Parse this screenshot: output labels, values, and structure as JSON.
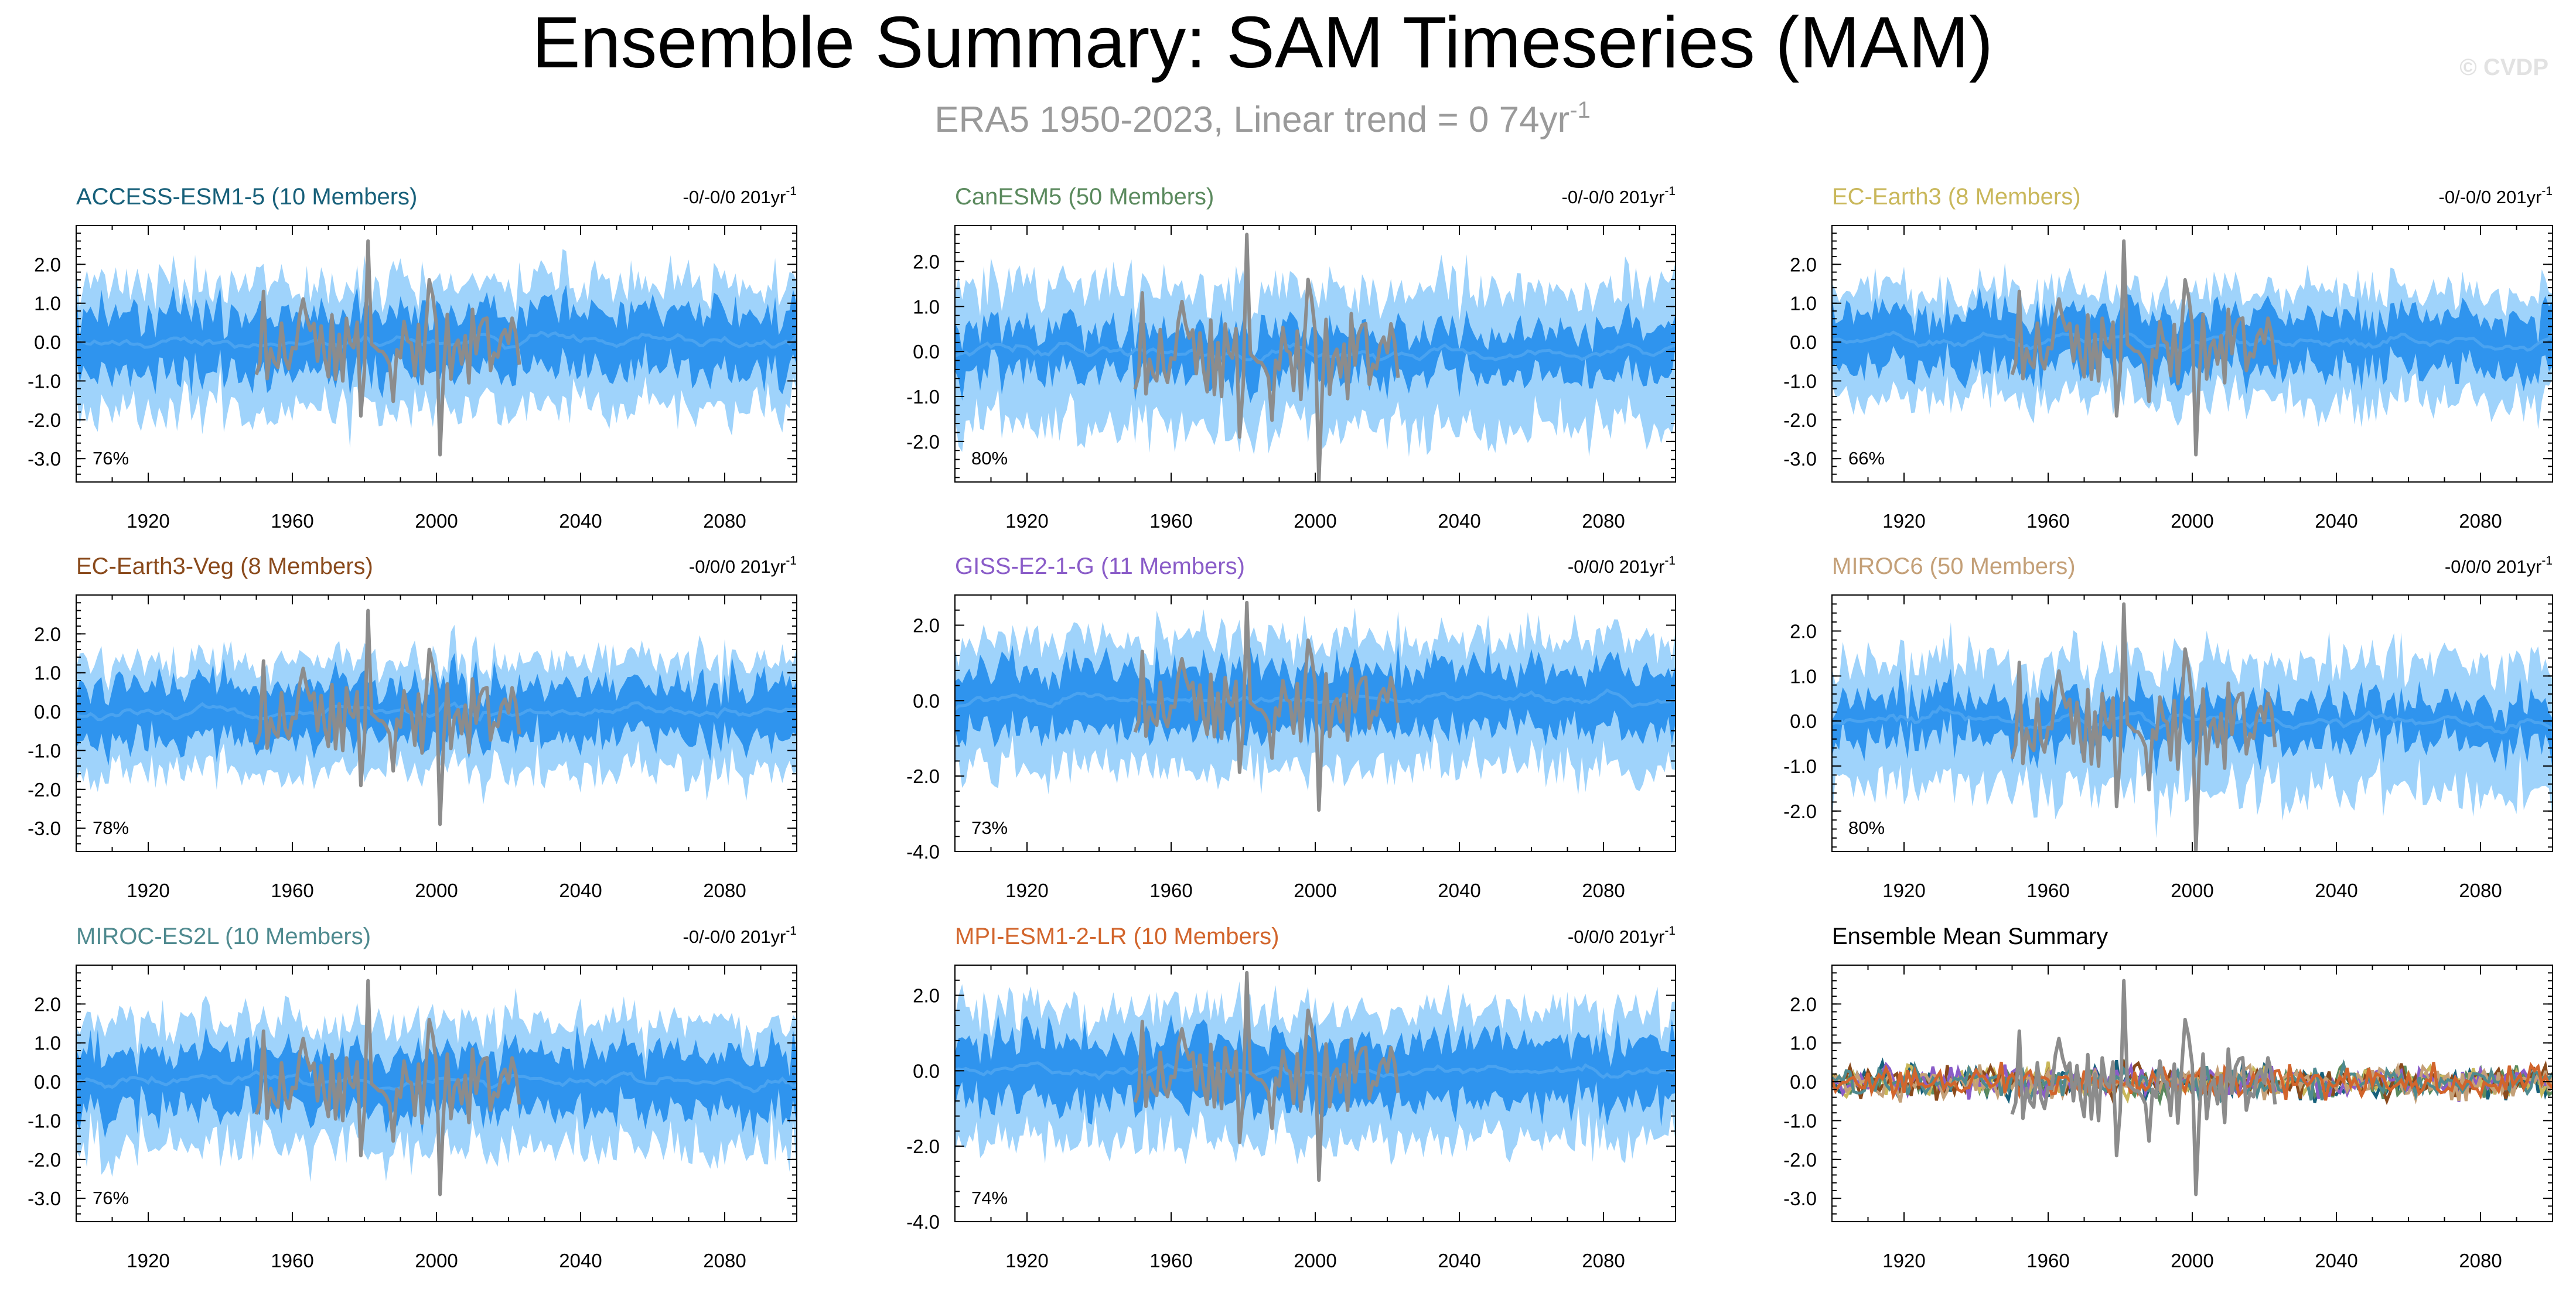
{
  "header": {
    "title": "Ensemble Summary: SAM Timeseries (MAM)",
    "subtitle_main": "ERA5 1950-2023, Linear trend = 0 74yr",
    "subtitle_sup": "-1",
    "watermark": "© CVDP"
  },
  "colors": {
    "outer_band": "#9fd3fb",
    "inner_band": "#2f94ee",
    "ensemble_mean": "#4aa3f0",
    "observations": "#8c8c8c",
    "axis": "#000000"
  },
  "chart_data": [
    {
      "type": "area",
      "title": "ACCESS-ESM1-5 (10 Members)",
      "title_color": "#17607a",
      "trend_text": "-0/-0/0 201yr",
      "trend_sup": "-1",
      "percent_label": "76%",
      "x_range": [
        1900,
        2100
      ],
      "x_ticks": [
        "1920",
        "1960",
        "2000",
        "2040",
        "2080"
      ],
      "ylim": [
        -3.6,
        3.0
      ],
      "y_ticks": [
        "2.0",
        "1.0",
        "0.0",
        "-1.0",
        "-2.0",
        "-3.0"
      ],
      "outer_half_width": 1.5,
      "inner_half_width": 0.75,
      "series": [
        {
          "role": "ensemble-band",
          "x_start": 1900,
          "x_end": 2100
        },
        {
          "role": "observations",
          "x_start": 1950,
          "x_end": 2023
        }
      ]
    },
    {
      "type": "area",
      "title": "CanESM5 (50 Members)",
      "title_color": "#5b8a5e",
      "trend_text": "-0/-0/0 201yr",
      "trend_sup": "-1",
      "percent_label": "80%",
      "x_range": [
        1900,
        2100
      ],
      "x_ticks": [
        "1920",
        "1960",
        "2000",
        "2040",
        "2080"
      ],
      "ylim": [
        -2.9,
        2.8
      ],
      "y_ticks": [
        "2.0",
        "1.0",
        "0.0",
        "-1.0",
        "-2.0"
      ],
      "outer_half_width": 1.4,
      "inner_half_width": 0.5,
      "series": [
        {
          "role": "ensemble-band",
          "x_start": 1900,
          "x_end": 2100
        },
        {
          "role": "observations",
          "x_start": 1950,
          "x_end": 2023
        }
      ]
    },
    {
      "type": "area",
      "title": "EC-Earth3 (8 Members)",
      "title_color": "#c9b75a",
      "trend_text": "-0/-0/0 201yr",
      "trend_sup": "-1",
      "percent_label": "66%",
      "x_range": [
        1900,
        2100
      ],
      "x_ticks": [
        "1920",
        "1960",
        "2000",
        "2040",
        "2080"
      ],
      "ylim": [
        -3.6,
        3.0
      ],
      "y_ticks": [
        "2.0",
        "1.0",
        "0.0",
        "-1.0",
        "-2.0",
        "-3.0"
      ],
      "outer_half_width": 1.3,
      "inner_half_width": 0.7,
      "series": [
        {
          "role": "ensemble-band",
          "x_start": 1900,
          "x_end": 2100
        },
        {
          "role": "observations",
          "x_start": 1950,
          "x_end": 2023
        }
      ]
    },
    {
      "type": "area",
      "title": "EC-Earth3-Veg (8 Members)",
      "title_color": "#8a4a1c",
      "trend_text": "-0/0/0 201yr",
      "trend_sup": "-1",
      "percent_label": "78%",
      "x_range": [
        1900,
        2100
      ],
      "x_ticks": [
        "1920",
        "1960",
        "2000",
        "2040",
        "2080"
      ],
      "ylim": [
        -3.6,
        3.0
      ],
      "y_ticks": [
        "2.0",
        "1.0",
        "0.0",
        "-1.0",
        "-2.0",
        "-3.0"
      ],
      "outer_half_width": 1.3,
      "inner_half_width": 0.7,
      "series": [
        {
          "role": "ensemble-band",
          "x_start": 1900,
          "x_end": 2100
        },
        {
          "role": "observations",
          "x_start": 1950,
          "x_end": 2023
        }
      ]
    },
    {
      "type": "area",
      "title": "GISS-E2-1-G (11 Members)",
      "title_color": "#8a5cc8",
      "trend_text": "-0/0/0 201yr",
      "trend_sup": "-1",
      "percent_label": "73%",
      "x_range": [
        1900,
        2100
      ],
      "x_ticks": [
        "1920",
        "1960",
        "2000",
        "2040",
        "2080"
      ],
      "ylim": [
        -4.0,
        2.8
      ],
      "y_ticks": [
        "2.0",
        "0.0",
        "-2.0",
        "-4.0"
      ],
      "outer_half_width": 1.6,
      "inner_half_width": 0.8,
      "series": [
        {
          "role": "ensemble-band",
          "x_start": 1900,
          "x_end": 2100
        },
        {
          "role": "observations",
          "x_start": 1950,
          "x_end": 2023
        }
      ]
    },
    {
      "type": "area",
      "title": "MIROC6 (50 Members)",
      "title_color": "#c4a078",
      "trend_text": "-0/0/0 201yr",
      "trend_sup": "-1",
      "percent_label": "80%",
      "x_range": [
        1900,
        2100
      ],
      "x_ticks": [
        "1920",
        "1960",
        "2000",
        "2040",
        "2080"
      ],
      "ylim": [
        -2.9,
        2.8
      ],
      "y_ticks": [
        "2.0",
        "1.0",
        "0.0",
        "-1.0",
        "-2.0"
      ],
      "outer_half_width": 1.3,
      "inner_half_width": 0.45,
      "series": [
        {
          "role": "ensemble-band",
          "x_start": 1900,
          "x_end": 2100
        },
        {
          "role": "observations",
          "x_start": 1950,
          "x_end": 2023
        }
      ]
    },
    {
      "type": "area",
      "title": "MIROC-ES2L (10 Members)",
      "title_color": "#4f8a8f",
      "trend_text": "-0/-0/0 201yr",
      "trend_sup": "-1",
      "percent_label": "76%",
      "x_range": [
        1900,
        2100
      ],
      "x_ticks": [
        "1920",
        "1960",
        "2000",
        "2040",
        "2080"
      ],
      "ylim": [
        -3.6,
        3.0
      ],
      "y_ticks": [
        "2.0",
        "1.0",
        "0.0",
        "-1.0",
        "-2.0",
        "-3.0"
      ],
      "outer_half_width": 1.5,
      "inner_half_width": 0.75,
      "series": [
        {
          "role": "ensemble-band",
          "x_start": 1900,
          "x_end": 2100
        },
        {
          "role": "observations",
          "x_start": 1950,
          "x_end": 2023
        }
      ]
    },
    {
      "type": "area",
      "title": "MPI-ESM1-2-LR (10 Members)",
      "title_color": "#d2652c",
      "trend_text": "-0/0/0 201yr",
      "trend_sup": "-1",
      "percent_label": "74%",
      "x_range": [
        1900,
        2100
      ],
      "x_ticks": [
        "1920",
        "1960",
        "2000",
        "2040",
        "2080"
      ],
      "ylim": [
        -4.0,
        2.8
      ],
      "y_ticks": [
        "2.0",
        "0.0",
        "-2.0",
        "-4.0"
      ],
      "outer_half_width": 1.6,
      "inner_half_width": 0.8,
      "series": [
        {
          "role": "ensemble-band",
          "x_start": 1900,
          "x_end": 2100
        },
        {
          "role": "observations",
          "x_start": 1950,
          "x_end": 2023
        }
      ]
    },
    {
      "type": "line",
      "title": "Ensemble Mean Summary",
      "title_color": "#000000",
      "trend_text": "",
      "trend_sup": "",
      "percent_label": "",
      "x_range": [
        1900,
        2100
      ],
      "x_ticks": [
        "1920",
        "1960",
        "2000",
        "2040",
        "2080"
      ],
      "ylim": [
        -3.6,
        3.0
      ],
      "y_ticks": [
        "2.0",
        "1.0",
        "0.0",
        "-1.0",
        "-2.0",
        "-3.0"
      ],
      "series": [
        {
          "role": "ensemble-mean",
          "color": "#17607a",
          "x_start": 1900,
          "x_end": 2100
        },
        {
          "role": "ensemble-mean",
          "color": "#5b8a5e",
          "x_start": 1900,
          "x_end": 2100
        },
        {
          "role": "ensemble-mean",
          "color": "#c9b75a",
          "x_start": 1900,
          "x_end": 2100
        },
        {
          "role": "ensemble-mean",
          "color": "#8a4a1c",
          "x_start": 1900,
          "x_end": 2100
        },
        {
          "role": "ensemble-mean",
          "color": "#8a5cc8",
          "x_start": 1900,
          "x_end": 2100
        },
        {
          "role": "ensemble-mean",
          "color": "#c4a078",
          "x_start": 1900,
          "x_end": 2100
        },
        {
          "role": "ensemble-mean",
          "color": "#4f8a8f",
          "x_start": 1900,
          "x_end": 2100
        },
        {
          "role": "ensemble-mean",
          "color": "#d2652c",
          "x_start": 1900,
          "x_end": 2100
        },
        {
          "role": "observations",
          "color": "#8c8c8c",
          "x_start": 1950,
          "x_end": 2023
        }
      ]
    }
  ]
}
